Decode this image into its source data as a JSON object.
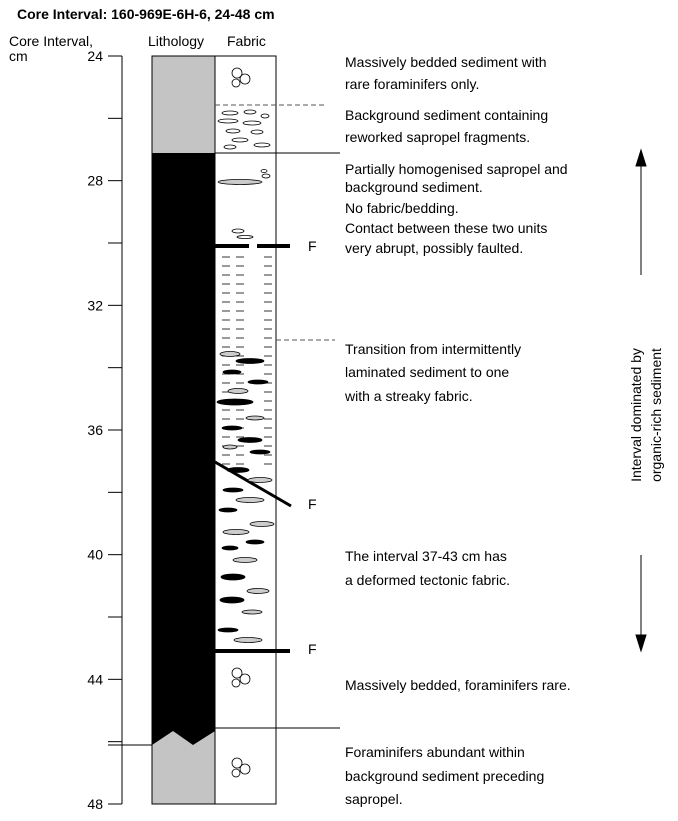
{
  "title": "Core Interval: 160-969E-6H-6, 24-48 cm",
  "headers": {
    "depth": "Core Interval,",
    "depth_unit": "cm",
    "lithology": "Lithology",
    "fabric": "Fabric"
  },
  "depth_ticks": [
    24,
    28,
    32,
    36,
    40,
    44,
    48
  ],
  "descriptions": [
    [
      "Massively bedded sediment with",
      "rare foraminifers only."
    ],
    [
      "Background sediment containing",
      "reworked sapropel fragments."
    ],
    [
      "Partially homogenised sapropel and",
      "background sediment.",
      "No fabric/bedding.",
      "Contact between these two units",
      "very abrupt, possibly faulted."
    ],
    [
      "Transition from intermittently",
      "laminated sediment to one",
      "with a streaky fabric."
    ],
    [
      "The interval 37-43 cm has",
      "a deformed tectonic fabric."
    ],
    [
      "Massively bedded, foraminifers rare."
    ],
    [
      "Foraminifers abundant within",
      "background sediment preceding",
      "sapropel."
    ]
  ],
  "faults": [
    "F",
    "F",
    "F"
  ],
  "side_label": [
    "Interval dominated by",
    "organic-rich sediment"
  ]
}
